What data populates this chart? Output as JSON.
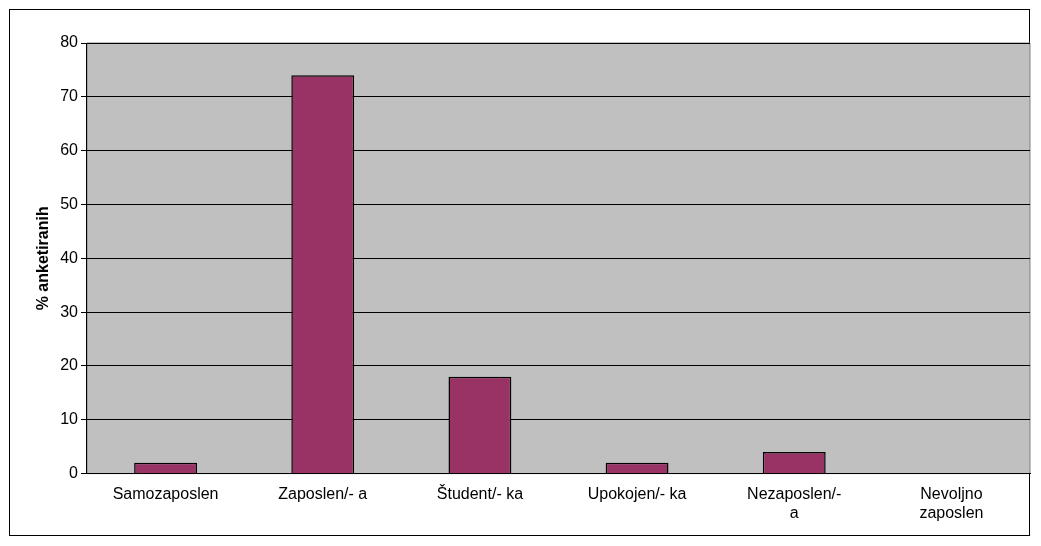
{
  "chart_data": {
    "type": "bar",
    "ylabel": "% anketiranih",
    "categories": [
      "Samozaposlen",
      "Zaposlen/- a",
      "Študent/- ka",
      "Upokojen/- ka",
      "Nezaposlen/-\na",
      "Nevoljno\nzaposlen"
    ],
    "values": [
      2,
      74,
      18,
      2,
      4,
      0
    ],
    "color": "#993366",
    "ylim": [
      0,
      80
    ],
    "yticks": [
      0,
      10,
      20,
      30,
      40,
      50,
      60,
      70,
      80
    ],
    "grid": "y",
    "legend": false
  }
}
